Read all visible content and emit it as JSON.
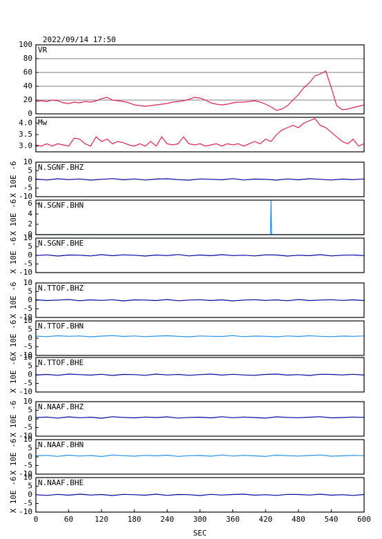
{
  "chart_data": [
    {
      "type": "line",
      "title": "2022/09/14 17:50",
      "label": "VR",
      "color": "#e0204a",
      "grid": true,
      "xlim": [
        0,
        600
      ],
      "ylim": [
        0,
        100
      ],
      "yticks": [
        0,
        20,
        40,
        60,
        80,
        100
      ],
      "x": [
        0,
        10,
        20,
        30,
        40,
        50,
        60,
        70,
        80,
        90,
        100,
        110,
        120,
        130,
        140,
        150,
        160,
        170,
        180,
        190,
        200,
        210,
        220,
        230,
        240,
        250,
        260,
        270,
        280,
        290,
        300,
        310,
        320,
        330,
        340,
        350,
        360,
        370,
        380,
        390,
        400,
        410,
        420,
        430,
        440,
        450,
        460,
        470,
        480,
        490,
        500,
        510,
        520,
        530,
        540,
        550,
        560,
        570,
        580,
        590,
        600
      ],
      "values": [
        18,
        19,
        18,
        20,
        19,
        16,
        15,
        17,
        16,
        18,
        17,
        19,
        22,
        24,
        20,
        19,
        18,
        16,
        13,
        12,
        11,
        12,
        13,
        14,
        15,
        17,
        18,
        19,
        21,
        24,
        23,
        20,
        16,
        14,
        13,
        14,
        16,
        17,
        17,
        18,
        19,
        17,
        14,
        10,
        5,
        7,
        12,
        20,
        28,
        38,
        45,
        55,
        58,
        62,
        38,
        12,
        6,
        7,
        9,
        11,
        13
      ]
    },
    {
      "type": "line",
      "label": "Mw",
      "color": "#e0204a",
      "xlim": [
        0,
        600
      ],
      "ylim": [
        2.75,
        4.25
      ],
      "yticks": [
        {
          "value": 3,
          "label": "3.0"
        },
        3.5,
        {
          "value": 4,
          "label": "4.0"
        }
      ],
      "x": [
        0,
        10,
        20,
        30,
        40,
        50,
        60,
        70,
        80,
        90,
        100,
        110,
        120,
        130,
        140,
        150,
        160,
        170,
        180,
        190,
        200,
        210,
        220,
        230,
        240,
        250,
        260,
        270,
        280,
        290,
        300,
        310,
        320,
        330,
        340,
        350,
        360,
        370,
        380,
        390,
        400,
        410,
        420,
        430,
        440,
        450,
        460,
        470,
        480,
        490,
        500,
        510,
        520,
        530,
        540,
        550,
        560,
        570,
        580,
        590,
        600
      ],
      "values": [
        3.05,
        3.0,
        3.1,
        3.0,
        3.1,
        3.05,
        3.0,
        3.35,
        3.3,
        3.1,
        3.0,
        3.4,
        3.2,
        3.3,
        3.1,
        3.2,
        3.15,
        3.05,
        3.0,
        3.1,
        3.0,
        3.2,
        3.0,
        3.4,
        3.1,
        3.05,
        3.1,
        3.4,
        3.1,
        3.05,
        3.1,
        3.0,
        3.05,
        3.1,
        3.0,
        3.1,
        3.05,
        3.1,
        3.0,
        3.1,
        3.2,
        3.1,
        3.3,
        3.2,
        3.5,
        3.7,
        3.8,
        3.9,
        3.8,
        4.0,
        4.1,
        4.2,
        3.9,
        3.8,
        3.6,
        3.4,
        3.2,
        3.1,
        3.3,
        3.0,
        3.1
      ]
    },
    {
      "type": "line",
      "label": "N.SGNF.BHZ",
      "ylabel": "X 10E -6",
      "color": "#0000a0",
      "xlim": [
        0,
        600
      ],
      "ylim": [
        -10,
        10
      ],
      "yticks": [
        -10,
        -5,
        0,
        5,
        10
      ],
      "x": [
        0,
        20,
        40,
        60,
        80,
        100,
        120,
        140,
        160,
        180,
        200,
        220,
        240,
        260,
        280,
        300,
        320,
        340,
        360,
        380,
        400,
        420,
        440,
        460,
        480,
        500,
        520,
        540,
        560,
        580,
        600
      ],
      "values": [
        0.2,
        -0.3,
        0.4,
        -0.1,
        0.3,
        -0.4,
        0.1,
        0.5,
        -0.2,
        0.3,
        -0.3,
        0.2,
        0.4,
        -0.1,
        -0.4,
        0.3,
        0.1,
        -0.2,
        0.5,
        -0.3,
        0.2,
        0.1,
        -0.4,
        0.3,
        -0.2,
        0.4,
        0.1,
        -0.3,
        0.2,
        -0.1,
        0.3
      ]
    },
    {
      "type": "line",
      "label": "N.SGNF.BHN",
      "ylabel": "X 10E -6",
      "color": "#2090f0",
      "xlim": [
        0,
        600
      ],
      "ylim": [
        0,
        6.67
      ],
      "yticks": [
        0,
        2,
        4,
        6
      ],
      "x": [
        0,
        20,
        40,
        60,
        80,
        100,
        120,
        140,
        160,
        180,
        200,
        220,
        240,
        260,
        280,
        300,
        320,
        340,
        360,
        380,
        400,
        420,
        429,
        430,
        431,
        440,
        460,
        480,
        500,
        520,
        540,
        560,
        580,
        600
      ],
      "values": [
        0,
        0,
        0,
        0,
        0,
        0,
        0,
        0,
        0,
        0,
        0,
        0,
        0,
        0,
        0,
        0,
        0,
        0,
        0,
        0,
        0,
        0,
        0,
        6.67,
        0,
        0,
        0,
        0,
        0,
        0,
        0,
        0,
        0,
        0
      ]
    },
    {
      "type": "line",
      "label": "N.SGNF.BHE",
      "ylabel": "X 10E -6",
      "color": "#0000a0",
      "xlim": [
        0,
        600
      ],
      "ylim": [
        -10,
        10
      ],
      "yticks": [
        -10,
        -5,
        0,
        5,
        10
      ],
      "x": [
        0,
        20,
        40,
        60,
        80,
        100,
        120,
        140,
        160,
        180,
        200,
        220,
        240,
        260,
        280,
        300,
        320,
        340,
        360,
        380,
        400,
        420,
        440,
        460,
        480,
        500,
        520,
        540,
        560,
        580,
        600
      ],
      "values": [
        -0.1,
        0.3,
        -0.4,
        0.2,
        0.1,
        -0.3,
        0.4,
        -0.2,
        0.3,
        0.1,
        -0.4,
        0.2,
        -0.1,
        0.5,
        -0.3,
        0.2,
        -0.2,
        0.4,
        -0.1,
        0.1,
        -0.3,
        0.3,
        0.2,
        -0.4,
        0.1,
        -0.2,
        0.4,
        -0.3,
        0.1,
        0.2,
        -0.1
      ]
    },
    {
      "type": "line",
      "label": "N.TTOF.BHZ",
      "ylabel": "X 10E -6",
      "color": "#0000a0",
      "xlim": [
        0,
        600
      ],
      "ylim": [
        -10,
        10
      ],
      "yticks": [
        -10,
        -5,
        0,
        5,
        10
      ],
      "x": [
        0,
        20,
        40,
        60,
        80,
        100,
        120,
        140,
        160,
        180,
        200,
        220,
        240,
        260,
        280,
        300,
        320,
        340,
        360,
        380,
        400,
        420,
        440,
        460,
        480,
        500,
        520,
        540,
        560,
        580,
        600
      ],
      "values": [
        0.3,
        -0.2,
        0.1,
        0.4,
        -0.3,
        0.2,
        -0.1,
        0.3,
        -0.4,
        0.2,
        0.1,
        -0.2,
        0.4,
        -0.3,
        0.1,
        0.3,
        -0.2,
        0.2,
        -0.4,
        0.1,
        0.3,
        -0.1,
        0.2,
        -0.3,
        0.4,
        -0.2,
        0.1,
        0.3,
        -0.1,
        0.2,
        -0.2
      ]
    },
    {
      "type": "line",
      "label": "N.TTOF.BHN",
      "ylabel": "X 10E -6",
      "color": "#2090f0",
      "xlim": [
        0,
        600
      ],
      "ylim": [
        -10,
        10
      ],
      "yticks": [
        -10,
        -5,
        0,
        5,
        10
      ],
      "x": [
        0,
        20,
        40,
        60,
        80,
        100,
        120,
        140,
        160,
        180,
        200,
        220,
        240,
        260,
        280,
        300,
        320,
        340,
        360,
        380,
        400,
        420,
        440,
        460,
        480,
        500,
        520,
        540,
        560,
        580,
        600
      ],
      "values": [
        1.2,
        0.9,
        1.4,
        1.1,
        1.3,
        0.8,
        1.2,
        1.5,
        1.0,
        1.3,
        0.9,
        1.2,
        1.4,
        1.1,
        0.8,
        1.3,
        1.1,
        1.0,
        1.5,
        0.9,
        1.2,
        1.1,
        0.8,
        1.3,
        1.0,
        1.4,
        1.1,
        0.9,
        1.2,
        1.1,
        1.3
      ]
    },
    {
      "type": "line",
      "label": "N.TTOF.BHE",
      "ylabel": "X 10E -6",
      "color": "#0000a0",
      "xlim": [
        0,
        600
      ],
      "ylim": [
        -10,
        10
      ],
      "yticks": [
        -10,
        -5,
        0,
        5,
        10
      ],
      "x": [
        0,
        20,
        40,
        60,
        80,
        100,
        120,
        140,
        160,
        180,
        200,
        220,
        240,
        260,
        280,
        300,
        320,
        340,
        360,
        380,
        400,
        420,
        440,
        460,
        480,
        500,
        520,
        540,
        560,
        580,
        600
      ],
      "values": [
        -0.2,
        0.2,
        -0.3,
        0.4,
        0.1,
        -0.2,
        0.3,
        -0.4,
        0.2,
        0.1,
        -0.3,
        0.4,
        -0.1,
        0.2,
        -0.3,
        0.1,
        0.4,
        -0.2,
        0.3,
        -0.1,
        -0.3,
        0.2,
        0.4,
        -0.2,
        0.1,
        -0.4,
        0.3,
        0.2,
        -0.1,
        0.3,
        -0.2
      ]
    },
    {
      "type": "line",
      "label": "N.NAAF.BHZ",
      "ylabel": "X 10E -6",
      "color": "#0000a0",
      "xlim": [
        0,
        600
      ],
      "ylim": [
        -10,
        10
      ],
      "yticks": [
        -10,
        -5,
        0,
        5,
        10
      ],
      "x": [
        0,
        20,
        40,
        60,
        80,
        100,
        120,
        140,
        160,
        180,
        200,
        220,
        240,
        260,
        280,
        300,
        320,
        340,
        360,
        380,
        400,
        420,
        440,
        460,
        480,
        500,
        520,
        540,
        560,
        580,
        600
      ],
      "values": [
        0.8,
        1.1,
        0.5,
        1.2,
        0.7,
        1.0,
        0.4,
        1.3,
        0.9,
        0.6,
        1.1,
        0.8,
        1.2,
        0.5,
        0.9,
        1.0,
        0.6,
        1.3,
        0.7,
        1.1,
        0.8,
        0.5,
        1.2,
        0.9,
        0.7,
        1.0,
        1.3,
        0.6,
        0.8,
        1.1,
        0.9
      ]
    },
    {
      "type": "line",
      "label": "N.NAAF.BHN",
      "ylabel": "X 10E -6",
      "color": "#2090f0",
      "xlim": [
        0,
        600
      ],
      "ylim": [
        -10,
        10
      ],
      "yticks": [
        -10,
        -5,
        0,
        5,
        10
      ],
      "x": [
        0,
        20,
        40,
        60,
        80,
        100,
        120,
        140,
        160,
        180,
        200,
        220,
        240,
        260,
        280,
        300,
        320,
        340,
        360,
        380,
        400,
        420,
        440,
        460,
        480,
        500,
        520,
        540,
        560,
        580,
        600
      ],
      "values": [
        0.6,
        0.9,
        0.3,
        1.0,
        0.5,
        0.8,
        0.2,
        1.1,
        0.7,
        0.4,
        0.9,
        0.6,
        1.0,
        0.3,
        0.7,
        0.8,
        0.4,
        1.1,
        0.5,
        0.9,
        0.6,
        0.3,
        1.0,
        0.7,
        0.5,
        0.8,
        1.1,
        0.4,
        0.6,
        0.9,
        0.7
      ]
    },
    {
      "type": "line",
      "label": "N.NAAF.BHE",
      "ylabel": "X 10E -6",
      "color": "#0000a0",
      "xlim": [
        0,
        600
      ],
      "ylim": [
        -10,
        10
      ],
      "yticks": [
        -10,
        -5,
        0,
        5,
        10
      ],
      "xlabel": "SEC",
      "xticks": [
        0,
        60,
        120,
        180,
        240,
        300,
        360,
        420,
        480,
        540,
        600
      ],
      "x": [
        0,
        20,
        40,
        60,
        80,
        100,
        120,
        140,
        160,
        180,
        200,
        220,
        240,
        260,
        280,
        300,
        320,
        340,
        360,
        380,
        400,
        420,
        440,
        460,
        480,
        500,
        520,
        540,
        560,
        580,
        600
      ],
      "values": [
        0.1,
        -0.3,
        0.3,
        -0.2,
        0.4,
        -0.1,
        0.2,
        -0.4,
        0.3,
        0.1,
        -0.2,
        0.4,
        -0.3,
        0.2,
        0.1,
        -0.4,
        0.3,
        -0.1,
        0.2,
        0.4,
        -0.2,
        0.1,
        -0.3,
        0.3,
        0.2,
        -0.1,
        0.4,
        -0.2,
        0.1,
        -0.3,
        0.2
      ]
    }
  ]
}
